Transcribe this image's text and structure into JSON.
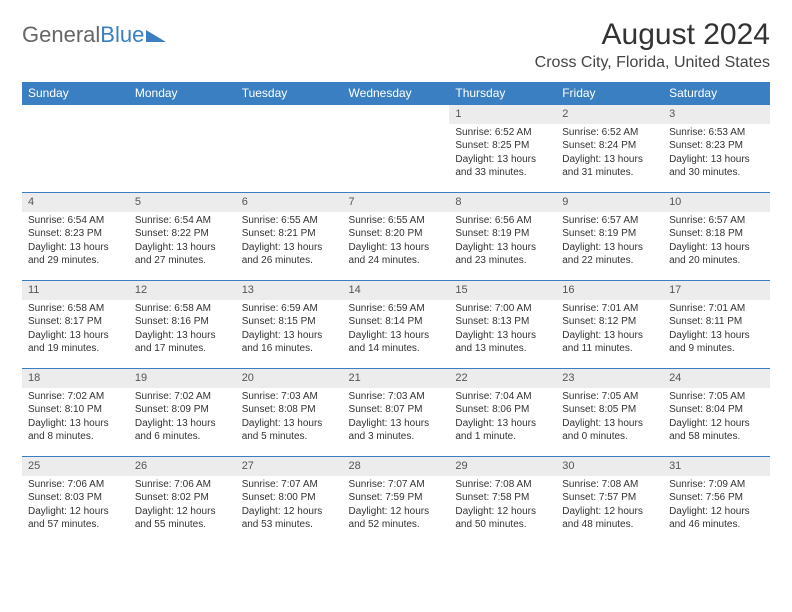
{
  "logo": {
    "part1": "General",
    "part2": "Blue"
  },
  "title": "August 2024",
  "location": "Cross City, Florida, United States",
  "colors": {
    "header_bg": "#3a7fc2",
    "header_text": "#ffffff",
    "daynum_bg": "#ececec",
    "cell_border": "#3a7fc2",
    "body_text": "#333333",
    "background": "#ffffff"
  },
  "weekdays": [
    "Sunday",
    "Monday",
    "Tuesday",
    "Wednesday",
    "Thursday",
    "Friday",
    "Saturday"
  ],
  "weeks": [
    [
      {
        "n": "",
        "sr": "",
        "ss": "",
        "dl": ""
      },
      {
        "n": "",
        "sr": "",
        "ss": "",
        "dl": ""
      },
      {
        "n": "",
        "sr": "",
        "ss": "",
        "dl": ""
      },
      {
        "n": "",
        "sr": "",
        "ss": "",
        "dl": ""
      },
      {
        "n": "1",
        "sr": "Sunrise: 6:52 AM",
        "ss": "Sunset: 8:25 PM",
        "dl": "Daylight: 13 hours and 33 minutes."
      },
      {
        "n": "2",
        "sr": "Sunrise: 6:52 AM",
        "ss": "Sunset: 8:24 PM",
        "dl": "Daylight: 13 hours and 31 minutes."
      },
      {
        "n": "3",
        "sr": "Sunrise: 6:53 AM",
        "ss": "Sunset: 8:23 PM",
        "dl": "Daylight: 13 hours and 30 minutes."
      }
    ],
    [
      {
        "n": "4",
        "sr": "Sunrise: 6:54 AM",
        "ss": "Sunset: 8:23 PM",
        "dl": "Daylight: 13 hours and 29 minutes."
      },
      {
        "n": "5",
        "sr": "Sunrise: 6:54 AM",
        "ss": "Sunset: 8:22 PM",
        "dl": "Daylight: 13 hours and 27 minutes."
      },
      {
        "n": "6",
        "sr": "Sunrise: 6:55 AM",
        "ss": "Sunset: 8:21 PM",
        "dl": "Daylight: 13 hours and 26 minutes."
      },
      {
        "n": "7",
        "sr": "Sunrise: 6:55 AM",
        "ss": "Sunset: 8:20 PM",
        "dl": "Daylight: 13 hours and 24 minutes."
      },
      {
        "n": "8",
        "sr": "Sunrise: 6:56 AM",
        "ss": "Sunset: 8:19 PM",
        "dl": "Daylight: 13 hours and 23 minutes."
      },
      {
        "n": "9",
        "sr": "Sunrise: 6:57 AM",
        "ss": "Sunset: 8:19 PM",
        "dl": "Daylight: 13 hours and 22 minutes."
      },
      {
        "n": "10",
        "sr": "Sunrise: 6:57 AM",
        "ss": "Sunset: 8:18 PM",
        "dl": "Daylight: 13 hours and 20 minutes."
      }
    ],
    [
      {
        "n": "11",
        "sr": "Sunrise: 6:58 AM",
        "ss": "Sunset: 8:17 PM",
        "dl": "Daylight: 13 hours and 19 minutes."
      },
      {
        "n": "12",
        "sr": "Sunrise: 6:58 AM",
        "ss": "Sunset: 8:16 PM",
        "dl": "Daylight: 13 hours and 17 minutes."
      },
      {
        "n": "13",
        "sr": "Sunrise: 6:59 AM",
        "ss": "Sunset: 8:15 PM",
        "dl": "Daylight: 13 hours and 16 minutes."
      },
      {
        "n": "14",
        "sr": "Sunrise: 6:59 AM",
        "ss": "Sunset: 8:14 PM",
        "dl": "Daylight: 13 hours and 14 minutes."
      },
      {
        "n": "15",
        "sr": "Sunrise: 7:00 AM",
        "ss": "Sunset: 8:13 PM",
        "dl": "Daylight: 13 hours and 13 minutes."
      },
      {
        "n": "16",
        "sr": "Sunrise: 7:01 AM",
        "ss": "Sunset: 8:12 PM",
        "dl": "Daylight: 13 hours and 11 minutes."
      },
      {
        "n": "17",
        "sr": "Sunrise: 7:01 AM",
        "ss": "Sunset: 8:11 PM",
        "dl": "Daylight: 13 hours and 9 minutes."
      }
    ],
    [
      {
        "n": "18",
        "sr": "Sunrise: 7:02 AM",
        "ss": "Sunset: 8:10 PM",
        "dl": "Daylight: 13 hours and 8 minutes."
      },
      {
        "n": "19",
        "sr": "Sunrise: 7:02 AM",
        "ss": "Sunset: 8:09 PM",
        "dl": "Daylight: 13 hours and 6 minutes."
      },
      {
        "n": "20",
        "sr": "Sunrise: 7:03 AM",
        "ss": "Sunset: 8:08 PM",
        "dl": "Daylight: 13 hours and 5 minutes."
      },
      {
        "n": "21",
        "sr": "Sunrise: 7:03 AM",
        "ss": "Sunset: 8:07 PM",
        "dl": "Daylight: 13 hours and 3 minutes."
      },
      {
        "n": "22",
        "sr": "Sunrise: 7:04 AM",
        "ss": "Sunset: 8:06 PM",
        "dl": "Daylight: 13 hours and 1 minute."
      },
      {
        "n": "23",
        "sr": "Sunrise: 7:05 AM",
        "ss": "Sunset: 8:05 PM",
        "dl": "Daylight: 13 hours and 0 minutes."
      },
      {
        "n": "24",
        "sr": "Sunrise: 7:05 AM",
        "ss": "Sunset: 8:04 PM",
        "dl": "Daylight: 12 hours and 58 minutes."
      }
    ],
    [
      {
        "n": "25",
        "sr": "Sunrise: 7:06 AM",
        "ss": "Sunset: 8:03 PM",
        "dl": "Daylight: 12 hours and 57 minutes."
      },
      {
        "n": "26",
        "sr": "Sunrise: 7:06 AM",
        "ss": "Sunset: 8:02 PM",
        "dl": "Daylight: 12 hours and 55 minutes."
      },
      {
        "n": "27",
        "sr": "Sunrise: 7:07 AM",
        "ss": "Sunset: 8:00 PM",
        "dl": "Daylight: 12 hours and 53 minutes."
      },
      {
        "n": "28",
        "sr": "Sunrise: 7:07 AM",
        "ss": "Sunset: 7:59 PM",
        "dl": "Daylight: 12 hours and 52 minutes."
      },
      {
        "n": "29",
        "sr": "Sunrise: 7:08 AM",
        "ss": "Sunset: 7:58 PM",
        "dl": "Daylight: 12 hours and 50 minutes."
      },
      {
        "n": "30",
        "sr": "Sunrise: 7:08 AM",
        "ss": "Sunset: 7:57 PM",
        "dl": "Daylight: 12 hours and 48 minutes."
      },
      {
        "n": "31",
        "sr": "Sunrise: 7:09 AM",
        "ss": "Sunset: 7:56 PM",
        "dl": "Daylight: 12 hours and 46 minutes."
      }
    ]
  ]
}
